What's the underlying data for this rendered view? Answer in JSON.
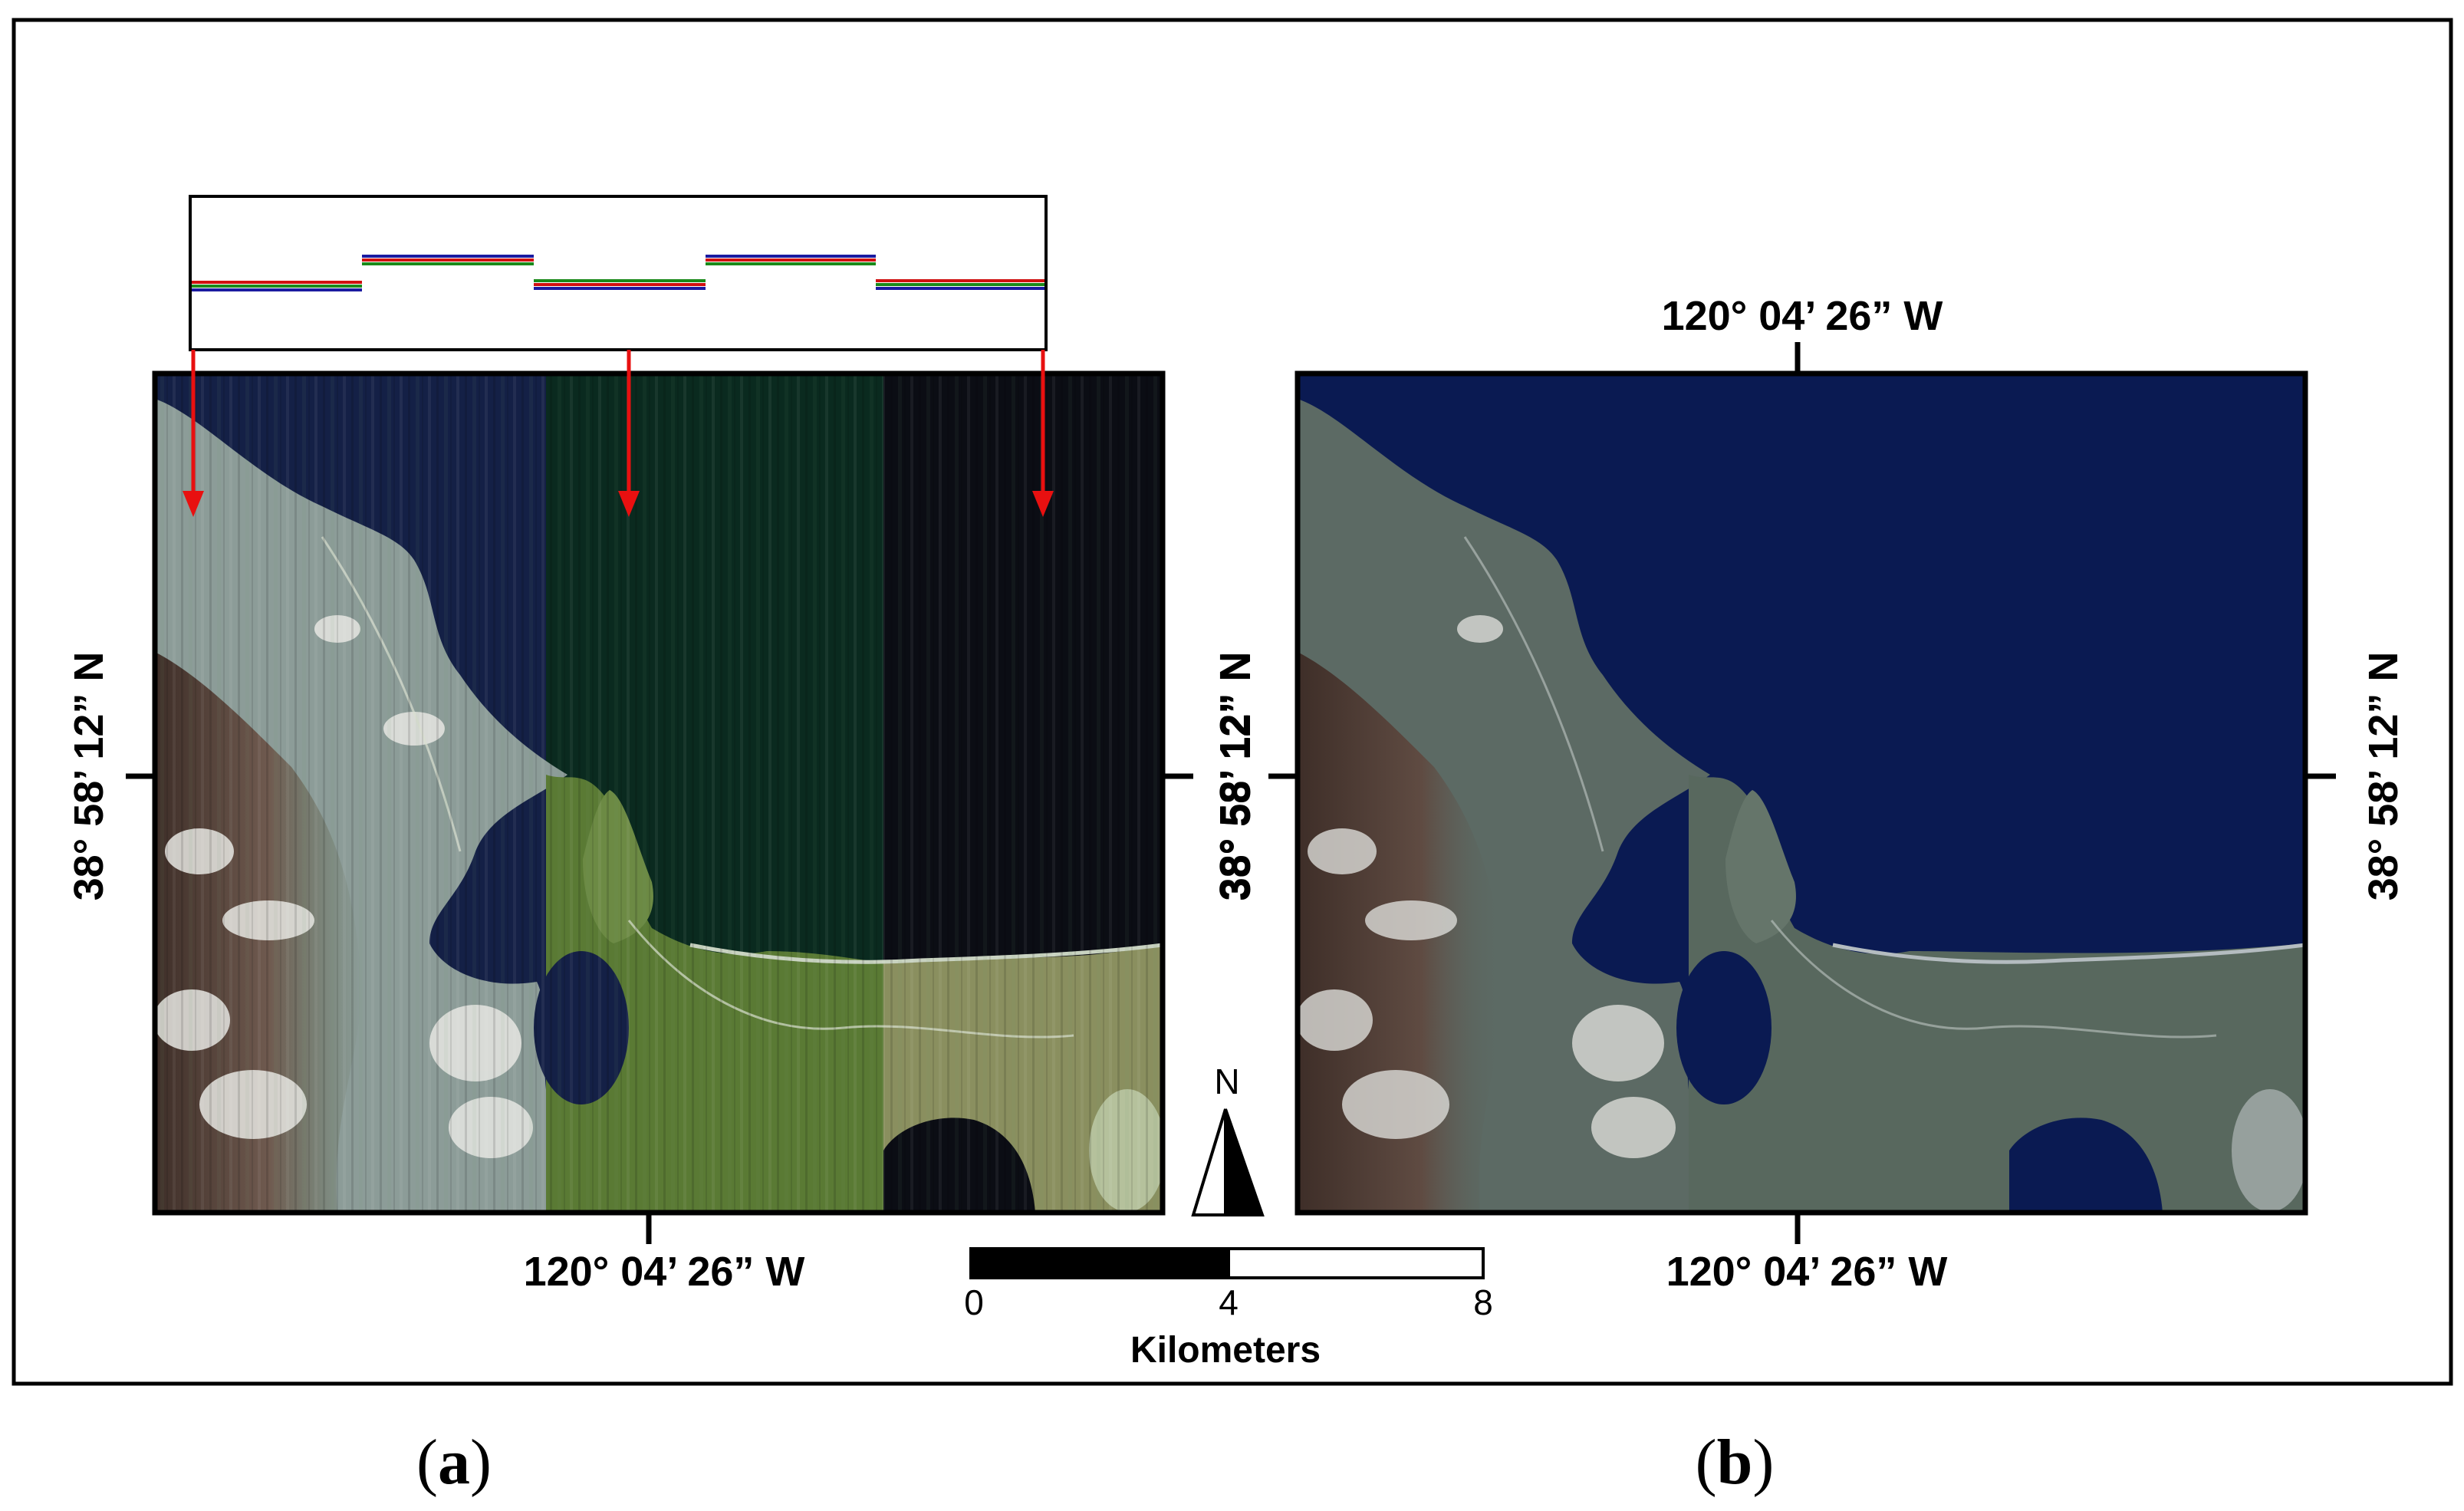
{
  "figure": {
    "panels": [
      {
        "id": "a",
        "label": "a",
        "longitude_bottom": "120° 04’ 26” W",
        "latitude_left": "38° 58’ 12” N",
        "latitude_right": "38° 58’ 12” N",
        "image_description_visible": false
      },
      {
        "id": "b",
        "label": "b",
        "longitude_top": "120° 04’ 26” W",
        "longitude_bottom": "120° 04’ 26” W",
        "latitude_left": "38° 58’ 12” N",
        "latitude_right": "38° 58’ 12” N"
      }
    ],
    "scale_bar": {
      "ticks": [
        "0",
        "4",
        "8"
      ],
      "unit": "Kilometers"
    },
    "north_arrow": {
      "label": "N"
    },
    "colors": {
      "water_a_left": "#142046",
      "water_a_mid": "#0a2a1f",
      "water_a_right": "#0b0d14",
      "water_b": "#0a1a52",
      "land_a_left": "#8a9a96",
      "land_a_mid": "#5a7a34",
      "land_a_right": "#8a8f5f",
      "land_b": "#5c6a64",
      "mountain": "#4b3a33",
      "arrow": "#e81010",
      "profile_red": "#d01010",
      "profile_green": "#1a8a1a",
      "profile_blue": "#1a1aa0"
    }
  }
}
